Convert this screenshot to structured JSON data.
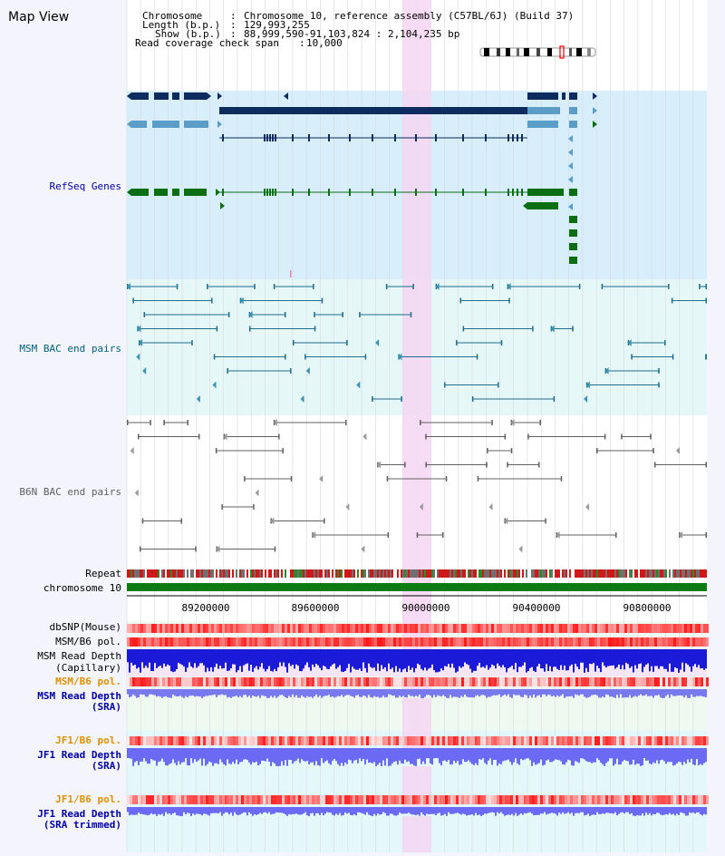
{
  "view_title": "Map View",
  "header": {
    "chromosome_label": "Chromosome",
    "chromosome_value": "Chromosome 10, reference assembly (C57BL/6J) (Build 37)",
    "length_label": "Length (b.p.)",
    "length_value": "129,993,255",
    "show_label": "Show (b.p.)",
    "show_value": "88,999,590-91,103,824 : 2,104,235 bp",
    "coverage_label": "Read coverage check span",
    "coverage_value": "10,000"
  },
  "tracks": {
    "refseq_genes": "RefSeq Genes",
    "msm_bac": "MSM BAC end pairs",
    "b6n_bac": "B6N BAC end pairs",
    "repeat": "Repeat",
    "chromosome": "chromosome 10",
    "dbsnp": "dbSNP(Mouse)",
    "msm_b6_pol_1": "MSM/B6 pol.",
    "msm_read_depth_cap_1": "MSM Read Depth",
    "msm_read_depth_cap_2": "(Capillary)",
    "msm_b6_pol_2": "MSM/B6 pol.",
    "msm_read_depth_sra_1": "MSM Read Depth",
    "msm_read_depth_sra_2": "(SRA)",
    "jf1_b6_pol_1": "JF1/B6 pol.",
    "jf1_read_depth_sra_1": "JF1 Read Depth",
    "jf1_read_depth_sra_2": "(SRA)",
    "jf1_b6_pol_2": "JF1/B6 pol.",
    "jf1_read_depth_trim_1": "JF1 Read Depth",
    "jf1_read_depth_trim_2": "(SRA trimmed)"
  },
  "axis_ticks": [
    "89200000",
    "89600000",
    "90000000",
    "90400000",
    "90800000"
  ],
  "colors": {
    "refseq_bg": "#d8eefa",
    "msm_bg": "#e6f7f7",
    "b6n_bg": "#ffffff",
    "highlight": "#f5d6f2",
    "navy": "#0d2b5e",
    "lightblue": "#5a9ec8",
    "green": "#0a6e12",
    "chrom_green": "#0e7a14",
    "msm_label": "#006080",
    "b6n_label": "#606060",
    "blue_label": "#0000aa",
    "orange_label": "#e09000"
  }
}
